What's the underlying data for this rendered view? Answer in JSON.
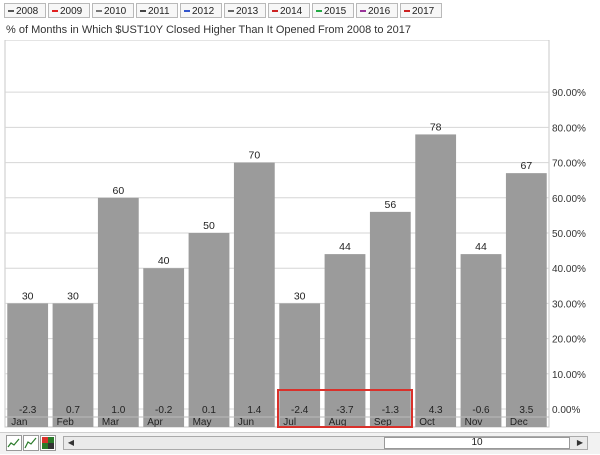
{
  "legend": {
    "items": [
      {
        "label": "2008",
        "color": "#555555"
      },
      {
        "label": "2009",
        "color": "#e02020"
      },
      {
        "label": "2010",
        "color": "#777777"
      },
      {
        "label": "2011",
        "color": "#444444"
      },
      {
        "label": "2012",
        "color": "#3355cc"
      },
      {
        "label": "2013",
        "color": "#666666"
      },
      {
        "label": "2014",
        "color": "#cc2222"
      },
      {
        "label": "2015",
        "color": "#22aa44"
      },
      {
        "label": "2016",
        "color": "#993399"
      },
      {
        "label": "2017",
        "color": "#cc2222"
      }
    ]
  },
  "chart_data": {
    "type": "bar",
    "title": "% of Months in Which $UST10Y Closed Higher Than It Opened From 2008 to 2017",
    "categories": [
      "Jan",
      "Feb",
      "Mar",
      "Apr",
      "May",
      "Jun",
      "Jul",
      "Aug",
      "Sep",
      "Oct",
      "Nov",
      "Dec"
    ],
    "values": [
      30,
      30,
      60,
      40,
      50,
      70,
      30,
      44,
      56,
      78,
      44,
      67
    ],
    "value_labels": [
      "30",
      "30",
      "60",
      "40",
      "50",
      "70",
      "30",
      "44",
      "56",
      "78",
      "44",
      "67"
    ],
    "bottom_labels": [
      "-2.3",
      "0.7",
      "1.0",
      "-0.2",
      "0.1",
      "1.4",
      "-2.4",
      "-3.7",
      "-1.3",
      "4.3",
      "-0.6",
      "3.5"
    ],
    "ylim": [
      0,
      100
    ],
    "y_ticks": [
      "0.00%",
      "10.00%",
      "20.00%",
      "30.00%",
      "40.00%",
      "50.00%",
      "60.00%",
      "70.00%",
      "80.00%",
      "90.00%"
    ],
    "y_tick_values": [
      0,
      10,
      20,
      30,
      40,
      50,
      60,
      70,
      80,
      90
    ],
    "y_axis_side": "right",
    "grid": true,
    "bar_color": "#9b9b9b",
    "highlight": {
      "categories": [
        "Jul",
        "Aug",
        "Sep"
      ],
      "color": "#d9312b"
    }
  },
  "scrollbar": {
    "value": "10"
  }
}
